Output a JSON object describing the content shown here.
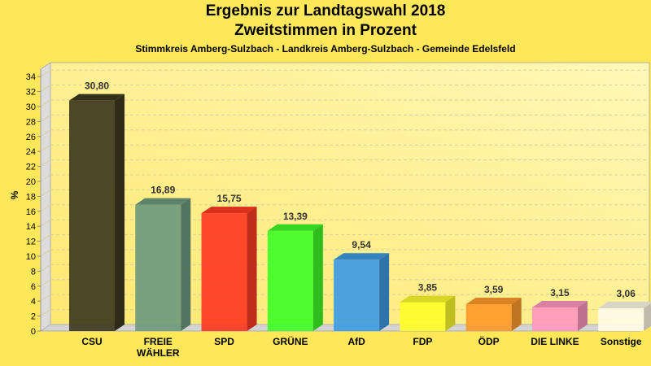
{
  "chart_data": {
    "type": "bar",
    "title": "Ergebnis zur Landtagswahl 2018",
    "subtitle": "Zweitstimmen in Prozent",
    "caption": "Stimmkreis Amberg-Sulzbach - Landkreis Amberg-Sulzbach - Gemeinde Edelsfeld",
    "xlabel": "",
    "ylabel": "%",
    "ylim": [
      0,
      35
    ],
    "yticks": [
      0,
      2,
      4,
      6,
      8,
      10,
      12,
      14,
      16,
      18,
      20,
      22,
      24,
      26,
      28,
      30,
      32,
      34
    ],
    "grid": true,
    "style": "3d",
    "categories": [
      "CSU",
      "FREIE WÄHLER",
      "SPD",
      "GRÜNE",
      "AfD",
      "FDP",
      "ÖDP",
      "DIE LINKE",
      "Sonstige"
    ],
    "category_lines": [
      [
        "CSU"
      ],
      [
        "FREIE",
        "WÄHLER"
      ],
      [
        "SPD"
      ],
      [
        "GRÜNE"
      ],
      [
        "AfD"
      ],
      [
        "FDP"
      ],
      [
        "ÖDP"
      ],
      [
        "DIE LINKE"
      ],
      [
        "Sonstige"
      ]
    ],
    "values": [
      30.8,
      16.89,
      15.75,
      13.39,
      9.54,
      3.85,
      3.59,
      3.15,
      3.06
    ],
    "value_labels": [
      "30,80",
      "16,89",
      "15,75",
      "13,39",
      "9,54",
      "3,85",
      "3,59",
      "3,15",
      "3,06"
    ],
    "colors": [
      "#3d3a1e",
      "#6f9a7e",
      "#ff3a22",
      "#3ffc26",
      "#3d9be3",
      "#fdfd2a",
      "#ff9a2a",
      "#ff98c0",
      "#fffbe6"
    ]
  }
}
